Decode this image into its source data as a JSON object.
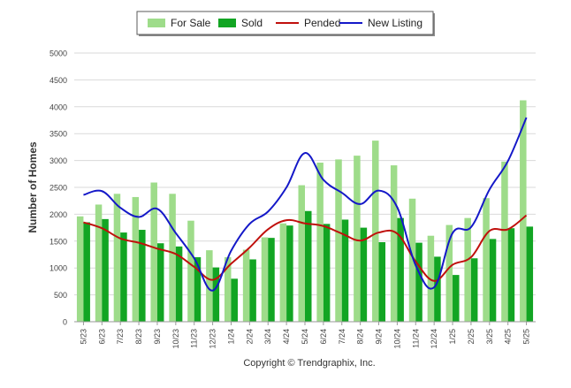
{
  "chart_data": {
    "type": "bar+line",
    "title": "",
    "xlabel": "",
    "ylabel": "Number of Homes",
    "ylim": [
      0,
      5000
    ],
    "yticks": [
      0,
      500,
      1000,
      1500,
      2000,
      2500,
      3000,
      3500,
      4000,
      4500,
      5000
    ],
    "grid": "horizontal",
    "legend_position": "top-center",
    "categories": [
      "5/23",
      "6/23",
      "7/23",
      "8/23",
      "9/23",
      "10/23",
      "11/23",
      "12/23",
      "1/24",
      "2/24",
      "3/24",
      "4/24",
      "5/24",
      "6/24",
      "7/24",
      "8/24",
      "9/24",
      "10/24",
      "11/24",
      "12/24",
      "1/25",
      "2/25",
      "3/25",
      "4/25",
      "5/25"
    ],
    "series": [
      {
        "name": "For Sale",
        "type": "bar",
        "color": "#9edc8a",
        "values": [
          1960,
          2180,
          2380,
          2320,
          2590,
          2380,
          1880,
          1330,
          1200,
          1340,
          1570,
          1830,
          2540,
          2960,
          3020,
          3090,
          3370,
          2910,
          2290,
          1600,
          1800,
          1930,
          2300,
          2980,
          4120
        ]
      },
      {
        "name": "Sold",
        "type": "bar",
        "color": "#12a523",
        "values": [
          1850,
          1910,
          1660,
          1710,
          1460,
          1400,
          1200,
          1010,
          800,
          1160,
          1560,
          1790,
          2060,
          1820,
          1900,
          1750,
          1480,
          1930,
          1470,
          1210,
          870,
          1180,
          1540,
          1740,
          1770
        ]
      },
      {
        "name": "Pended",
        "type": "line",
        "color": "#c0100c",
        "values": [
          1850,
          1740,
          1550,
          1470,
          1360,
          1260,
          1020,
          780,
          1080,
          1380,
          1720,
          1890,
          1830,
          1780,
          1640,
          1510,
          1660,
          1640,
          1120,
          760,
          1060,
          1200,
          1690,
          1720,
          1980
        ]
      },
      {
        "name": "New Listing",
        "type": "line",
        "color": "#1418c8",
        "values": [
          2360,
          2430,
          2120,
          1950,
          2100,
          1650,
          1180,
          580,
          1320,
          1820,
          2050,
          2500,
          3140,
          2640,
          2400,
          2190,
          2440,
          2130,
          1050,
          640,
          1650,
          1760,
          2460,
          2990,
          3800
        ]
      }
    ],
    "footer": "Copyright © Trendgraphix, Inc."
  }
}
